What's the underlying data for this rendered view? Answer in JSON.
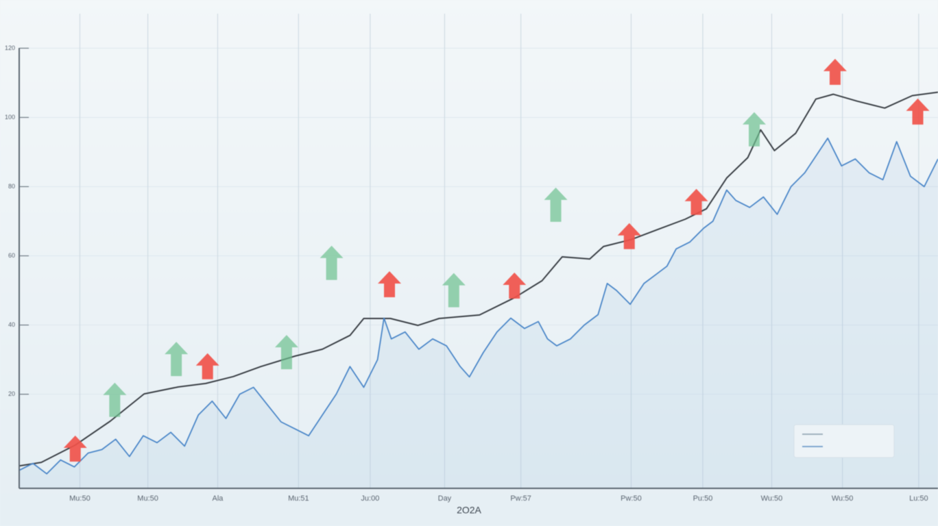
{
  "chart_data": {
    "type": "line",
    "x_label": "2O2A",
    "xlim": [
      0,
      100
    ],
    "ylim": [
      -7,
      128
    ],
    "xticks": [
      {
        "value": 6.6,
        "label": "Mu:50"
      },
      {
        "value": 14.0,
        "label": "Mu:50"
      },
      {
        "value": 21.6,
        "label": "Ala"
      },
      {
        "value": 30.4,
        "label": "Mu:51"
      },
      {
        "value": 38.2,
        "label": "Ju:00"
      },
      {
        "value": 46.3,
        "label": "Day"
      },
      {
        "value": 54.6,
        "label": "Pw:57"
      },
      {
        "value": 66.6,
        "label": "Pw:50"
      },
      {
        "value": 74.4,
        "label": "Pu:50"
      },
      {
        "value": 81.9,
        "label": "Wu:50"
      },
      {
        "value": 89.6,
        "label": "Wu:50"
      },
      {
        "value": 97.9,
        "label": "Lu:50"
      }
    ],
    "yticks": [
      20,
      40,
      60,
      80,
      100,
      120
    ],
    "grid": true,
    "series": [
      {
        "color": "#3a3f45",
        "x": [
          0,
          2.4,
          6.1,
          9.9,
          13.6,
          17.3,
          20.3,
          23.3,
          26.3,
          30.0,
          33.0,
          36.0,
          37.5,
          40.4,
          43.4,
          45.7,
          50.1,
          53.9,
          56.9,
          59.1,
          62.1,
          63.6,
          66.6,
          69.6,
          72.5,
          74.8,
          77.0,
          79.3,
          80.7,
          82.2,
          84.5,
          86.7,
          88.6,
          91.2,
          94.2,
          97.2,
          100
        ],
        "values": [
          -0.7,
          0.3,
          5.3,
          12.2,
          20.1,
          22.1,
          23.1,
          25.1,
          28.0,
          31.0,
          33.0,
          37.0,
          41.9,
          41.9,
          39.9,
          41.9,
          42.9,
          47.9,
          52.8,
          59.7,
          59.1,
          62.7,
          64.7,
          67.7,
          70.6,
          73.6,
          82.5,
          88.4,
          96.4,
          90.4,
          95.4,
          105.3,
          106.7,
          104.7,
          102.7,
          106.3,
          107.3
        ]
      },
      {
        "color": "#4a86c8",
        "x": [
          0,
          1.5,
          3,
          4.5,
          6,
          7.5,
          9,
          10.5,
          12,
          13.5,
          15,
          16.5,
          18,
          19.5,
          21,
          22.5,
          24,
          25.5,
          27,
          28.5,
          30,
          31.5,
          33,
          34.5,
          36,
          37.5,
          39,
          39.7,
          40.5,
          42,
          43.5,
          45,
          46.5,
          48,
          49,
          50.5,
          52,
          53.5,
          55,
          56.5,
          57.5,
          58.5,
          60,
          61.5,
          63,
          64,
          65,
          66.5,
          68,
          69.5,
          70.5,
          71.5,
          73,
          74.5,
          75.5,
          77,
          78,
          79.5,
          81,
          82.5,
          84,
          85.5,
          87,
          88,
          89.5,
          91,
          92.5,
          94,
          95.5,
          97,
          98.5,
          100
        ],
        "values": [
          -2,
          0,
          -3,
          1,
          -1,
          3,
          4,
          7,
          2,
          8,
          6,
          9,
          5,
          14,
          18,
          13,
          20,
          22,
          17,
          12,
          10,
          8,
          14,
          20,
          28,
          22,
          30,
          42,
          36,
          38,
          33,
          36,
          34,
          28,
          25,
          32,
          38,
          42,
          39,
          41,
          36,
          34,
          36,
          40,
          43,
          52,
          50,
          46,
          52,
          55,
          57,
          62,
          64,
          68,
          70,
          79,
          76,
          74,
          77,
          72,
          80,
          84,
          90,
          94,
          86,
          88,
          84,
          82,
          93,
          83,
          80,
          88
        ]
      }
    ],
    "markers": [
      {
        "color": "#f0524a",
        "x": 6.1,
        "y": 3.3
      },
      {
        "color": "#6cc08e",
        "x": 10.4,
        "y": 16.2
      },
      {
        "color": "#6cc08e",
        "x": 17.1,
        "y": 28.0
      },
      {
        "color": "#f0524a",
        "x": 20.5,
        "y": 27.1
      },
      {
        "color": "#6cc08e",
        "x": 29.1,
        "y": 30.0
      },
      {
        "color": "#6cc08e",
        "x": 34.0,
        "y": 55.8
      },
      {
        "color": "#f0524a",
        "x": 40.3,
        "y": 50.8
      },
      {
        "color": "#6cc08e",
        "x": 47.3,
        "y": 47.9
      },
      {
        "color": "#f0524a",
        "x": 53.9,
        "y": 50.4
      },
      {
        "color": "#6cc08e",
        "x": 58.4,
        "y": 72.6
      },
      {
        "color": "#f0524a",
        "x": 66.4,
        "y": 64.7
      },
      {
        "color": "#f0524a",
        "x": 73.7,
        "y": 74.6
      },
      {
        "color": "#6cc08e",
        "x": 80.0,
        "y": 94.4
      },
      {
        "color": "#f0524a",
        "x": 88.8,
        "y": 112.2
      },
      {
        "color": "#f0524a",
        "x": 97.8,
        "y": 100.7
      }
    ]
  }
}
